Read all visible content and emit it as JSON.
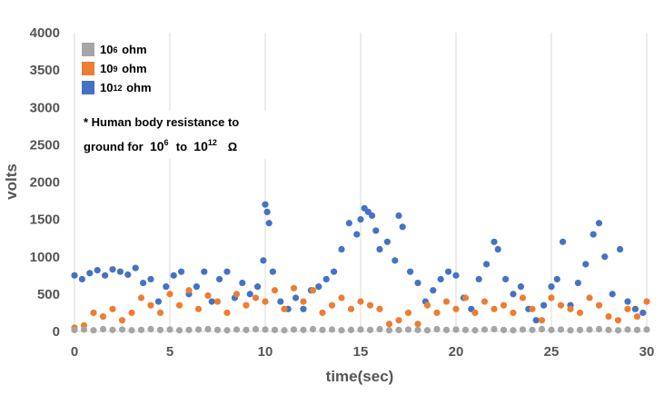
{
  "chart_data": {
    "type": "scatter",
    "xlabel": "time(sec)",
    "ylabel": "volts",
    "xlim": [
      0,
      30
    ],
    "ylim": [
      0,
      4000
    ],
    "x_ticks": [
      "0",
      "5",
      "10",
      "15",
      "20",
      "25",
      "30"
    ],
    "y_ticks": [
      "0",
      "500",
      "1000",
      "1500",
      "2000",
      "2500",
      "3000",
      "3500",
      "4000"
    ],
    "grid": "vertical",
    "legend_position": "top-left",
    "series": [
      {
        "name": "10^12 ohm",
        "label_base": "10",
        "label_exp": "12",
        "label_unit": "ohm",
        "color": "#4472C4",
        "x": [
          0.0,
          0.4,
          0.8,
          1.2,
          1.6,
          2.0,
          2.4,
          2.8,
          3.2,
          3.6,
          4.0,
          4.4,
          4.8,
          5.2,
          5.6,
          6.0,
          6.4,
          6.8,
          7.2,
          7.6,
          8.0,
          8.4,
          8.8,
          9.2,
          9.6,
          9.9,
          10.0,
          10.1,
          10.2,
          10.4,
          10.8,
          11.2,
          11.6,
          12.0,
          12.4,
          12.8,
          13.2,
          13.6,
          14.0,
          14.4,
          14.8,
          15.0,
          15.2,
          15.4,
          15.6,
          15.8,
          16.0,
          16.4,
          16.8,
          17.0,
          17.2,
          17.6,
          18.0,
          18.4,
          18.8,
          19.2,
          19.6,
          20.0,
          20.4,
          20.8,
          21.2,
          21.6,
          22.0,
          22.2,
          22.6,
          23.0,
          23.4,
          23.8,
          24.2,
          24.6,
          25.0,
          25.3,
          25.6,
          26.0,
          26.4,
          26.8,
          27.2,
          27.5,
          27.8,
          28.2,
          28.6,
          29.0,
          29.4,
          29.8
        ],
        "y": [
          750,
          700,
          780,
          820,
          750,
          830,
          800,
          760,
          850,
          650,
          700,
          400,
          600,
          750,
          800,
          500,
          600,
          800,
          400,
          700,
          800,
          450,
          650,
          500,
          600,
          950,
          1700,
          1600,
          1450,
          800,
          400,
          300,
          450,
          300,
          550,
          600,
          700,
          800,
          1100,
          1450,
          1300,
          1500,
          1650,
          1600,
          1550,
          1350,
          1100,
          1200,
          950,
          1550,
          1400,
          800,
          650,
          400,
          550,
          700,
          800,
          750,
          450,
          300,
          700,
          900,
          1200,
          1100,
          700,
          500,
          600,
          300,
          150,
          350,
          600,
          700,
          1200,
          350,
          650,
          900,
          1300,
          1450,
          1000,
          500,
          1100,
          400,
          300,
          250
        ]
      },
      {
        "name": "10^9 ohm",
        "label_base": "10",
        "label_exp": "9",
        "label_unit": "ohm",
        "color": "#ED7D31",
        "x": [
          0.0,
          0.5,
          1.0,
          1.5,
          2.0,
          2.5,
          3.0,
          3.5,
          4.0,
          4.5,
          5.0,
          5.5,
          6.0,
          6.5,
          7.0,
          7.5,
          8.0,
          8.5,
          9.0,
          9.5,
          10.0,
          10.5,
          11.0,
          11.5,
          12.0,
          12.5,
          13.0,
          13.5,
          14.0,
          14.5,
          15.0,
          15.5,
          16.0,
          16.5,
          17.0,
          17.5,
          18.0,
          18.5,
          19.0,
          19.5,
          20.0,
          20.5,
          21.0,
          21.5,
          22.0,
          22.5,
          23.0,
          23.5,
          24.0,
          24.5,
          25.0,
          25.5,
          26.0,
          26.5,
          27.0,
          27.5,
          28.0,
          28.5,
          29.0,
          29.5,
          30.0
        ],
        "y": [
          50,
          80,
          250,
          200,
          300,
          150,
          250,
          450,
          350,
          250,
          500,
          350,
          550,
          300,
          480,
          400,
          250,
          500,
          350,
          450,
          400,
          550,
          300,
          580,
          400,
          550,
          250,
          350,
          450,
          300,
          400,
          350,
          300,
          100,
          150,
          250,
          100,
          350,
          250,
          400,
          300,
          450,
          250,
          400,
          300,
          350,
          250,
          450,
          300,
          150,
          450,
          350,
          300,
          250,
          450,
          350,
          200,
          150,
          300,
          200,
          400
        ]
      },
      {
        "name": "10^6 ohm",
        "label_base": "10",
        "label_exp": "6",
        "label_unit": "ohm",
        "color": "#A5A5A5",
        "x": [
          0,
          0.5,
          1,
          1.5,
          2,
          2.5,
          3,
          3.5,
          4,
          4.5,
          5,
          5.5,
          6,
          6.5,
          7,
          7.5,
          8,
          8.5,
          9,
          9.5,
          10,
          10.5,
          11,
          11.5,
          12,
          12.5,
          13,
          13.5,
          14,
          14.5,
          15,
          15.5,
          16,
          16.5,
          17,
          17.5,
          18,
          18.5,
          19,
          19.5,
          20,
          20.5,
          21,
          21.5,
          22,
          22.5,
          23,
          23.5,
          24,
          24.5,
          25,
          25.5,
          26,
          26.5,
          27,
          27.5,
          28,
          28.5,
          29,
          29.5,
          30
        ],
        "y": [
          20,
          25,
          15,
          30,
          20,
          25,
          15,
          20,
          30,
          20,
          25,
          15,
          20,
          25,
          30,
          20,
          15,
          25,
          20,
          30,
          25,
          20,
          15,
          25,
          20,
          30,
          20,
          25,
          15,
          20,
          25,
          20,
          30,
          15,
          20,
          25,
          20,
          15,
          30,
          20,
          25,
          20,
          15,
          25,
          30,
          20,
          15,
          25,
          20,
          30,
          20,
          25,
          15,
          20,
          25,
          30,
          20,
          15,
          25,
          20,
          25
        ]
      }
    ]
  },
  "legend_order": [
    2,
    1,
    0
  ],
  "note": {
    "line1": "* Human body  resistance to",
    "line2_prefix": "ground  for",
    "from_base": "10",
    "from_exp": "6",
    "connector": "to",
    "to_base": "10",
    "to_exp": "12",
    "unit": "Ω"
  }
}
